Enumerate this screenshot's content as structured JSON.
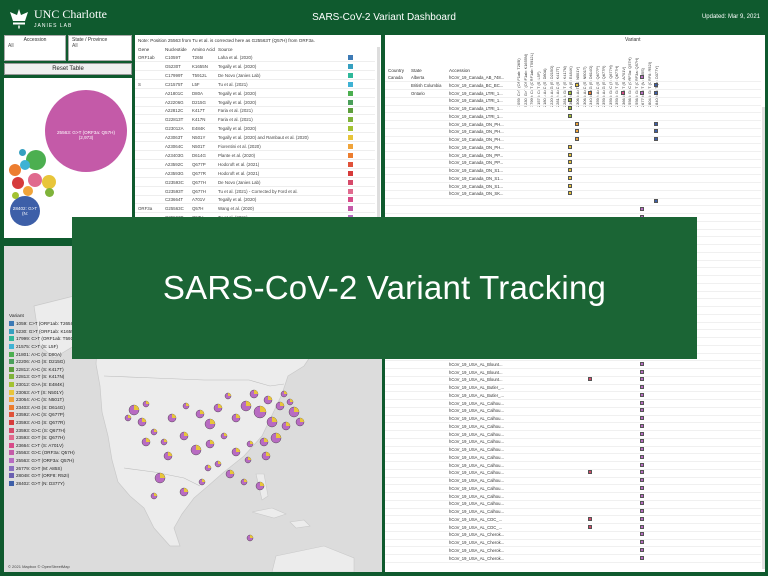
{
  "header": {
    "logo_name": "UNC Charlotte",
    "logo_sub": "JANIES LAB",
    "title": "SARS-CoV-2 Variant Dashboard",
    "updated": "Updated: Mar 9, 2021"
  },
  "filters": {
    "accession_label": "Accession",
    "accession_value": "All",
    "state_label": "State / Province",
    "state_value": "All",
    "reset_label": "Reset Table"
  },
  "bubbles": {
    "main_label": "25563: G>T (ORF3a: Q57H)",
    "main_count": "(2,973)",
    "second_label": "28402: G>T (N:"
  },
  "mutations": {
    "note": "Note: Position 25563 from Tu et al. is corrected here as G25563T (Q57H) from ORF3a.",
    "headers": [
      "Gene",
      "Nucleotide",
      "Amino Acid",
      "Source"
    ],
    "rows": [
      {
        "gene": "ORF1ab",
        "nuc": "C1059T",
        "aa": "T265I",
        "src": "Laha et al. (2020)",
        "color": "#3d7ab5"
      },
      {
        "gene": "",
        "nuc": "G5230T",
        "aa": "K1655N",
        "src": "Tegally et al. (2020)",
        "color": "#35a0c0"
      },
      {
        "gene": "",
        "nuc": "C17999T",
        "aa": "T5912L",
        "src": "De Novo (Janies Lab)",
        "color": "#2fb89a"
      },
      {
        "gene": "S",
        "nuc": "C21575T",
        "aa": "L5F",
        "src": "Tu et al. (2021)",
        "color": "#3fb2d4"
      },
      {
        "gene": "",
        "nuc": "A21801C",
        "aa": "D80A",
        "src": "Tegally et al. (2020)",
        "color": "#4caf50"
      },
      {
        "gene": "",
        "nuc": "A22206G",
        "aa": "D215G",
        "src": "Tegally et al. (2020)",
        "color": "#4a9f5a"
      },
      {
        "gene": "",
        "nuc": "A22812C",
        "aa": "K417T",
        "src": "Faria et al. (2021)",
        "color": "#5d9e3c"
      },
      {
        "gene": "",
        "nuc": "G22813T",
        "aa": "K417N",
        "src": "Faria et al. (2021)",
        "color": "#7fb33a"
      },
      {
        "gene": "",
        "nuc": "G23012A",
        "aa": "E484K",
        "src": "Tegally et al. (2020)",
        "color": "#a3c232"
      },
      {
        "gene": "",
        "nuc": "A23063T",
        "aa": "N501Y",
        "src": "Tegally et al. (2020) and Rambaut et al. (2020)",
        "color": "#e8c53a"
      },
      {
        "gene": "",
        "nuc": "A23064C",
        "aa": "N501T",
        "src": "Fiorentini et al. (2020)",
        "color": "#f0a43a"
      },
      {
        "gene": "",
        "nuc": "A23403G",
        "aa": "D614G",
        "src": "Plante et al. (2020)",
        "color": "#ec7d2f"
      },
      {
        "gene": "",
        "nuc": "A23592C",
        "aa": "Q677P",
        "src": "Hodcroft et al. (2021)",
        "color": "#e0523a"
      },
      {
        "gene": "",
        "nuc": "A23593G",
        "aa": "Q677R",
        "src": "Hodcroft et al. (2021)",
        "color": "#d63b3b"
      },
      {
        "gene": "",
        "nuc": "G23593C",
        "aa": "Q677H",
        "src": "De Novo (Janies Lab)",
        "color": "#d64a6a"
      },
      {
        "gene": "",
        "nuc": "G23593T",
        "aa": "Q677H",
        "src": "Tu et al. (2021) - Corrected by Ford et al.",
        "color": "#e06a8e"
      },
      {
        "gene": "",
        "nuc": "C23664T",
        "aa": "A701V",
        "src": "Tegally et al. (2020)",
        "color": "#d84a88"
      },
      {
        "gene": "ORF3a",
        "nuc": "G25563C",
        "aa": "Q57H",
        "src": "Wang et al. (2020)",
        "color": "#c45aa8"
      },
      {
        "gene": "",
        "nuc": "G25563T",
        "aa": "Q57H",
        "src": "Tu et al. (2021)",
        "color": "#b86bc2"
      },
      {
        "gene": "M",
        "nuc": "G26779T",
        "aa": "A85S",
        "src": "Tu et al. (2021)",
        "color": "#8a6fc0"
      }
    ]
  },
  "grid": {
    "variant_label": "Variant",
    "headers": {
      "country": "Country",
      "state": "State",
      "accession": "Accession"
    },
    "columns": [
      "1059: C>T (ORF1ab: T265I)",
      "5230: G>T (ORF1ab: K1655N)",
      "17999: C>T (ORF1ab: T5912L)",
      "21575: C>T (S: L5F)",
      "21801: A>C (S: D80A)",
      "22206: A>G (S: D215G)",
      "22812: A>C (S: K417T)",
      "22813: G>T (S: K417N)",
      "23012: G>A (S: E484K)",
      "23063: A>T (S: N501Y)",
      "23064: A>C (S: N501T)",
      "23403: A>G (S: D614G)",
      "23592: A>C (S: Q677P)",
      "23593: A>G (S: Q677R)",
      "23593: G>C (S: Q677H)",
      "23593: G>T (S: Q677H)",
      "23664: C>T (S: A701V)",
      "25563: G>C (ORF3a: Q57H)",
      "25563: G>T (ORF3a: Q57H)",
      "26779: G>T (M: A85S)",
      "28048: G>T (ORF8: R52I)",
      "28402: G>T (N: D377Y)"
    ],
    "rows": [
      {
        "country": "Canada",
        "state": "Alberta",
        "acc": "hCoV_19_Canada_AB_748...",
        "marks": [
          [
            19,
            "#b86bc2"
          ]
        ]
      },
      {
        "country": "",
        "state": "British Columbia",
        "acc": "hCoV_19_Canada_BC_BC...",
        "marks": [
          [
            9,
            "#e8c53a"
          ],
          [
            21,
            "#3d5fa8"
          ]
        ]
      },
      {
        "country": "",
        "state": "Ontario",
        "acc": "hCoV_19_Canada_LTRI_1...",
        "marks": [
          [
            8,
            "#a3c232"
          ],
          [
            11,
            "#ec7d2f"
          ],
          [
            16,
            "#d84a88"
          ],
          [
            19,
            "#b86bc2"
          ],
          [
            21,
            "#3d5fa8"
          ]
        ]
      },
      {
        "country": "",
        "state": "",
        "acc": "hCoV_19_Canada_LTRI_1...",
        "marks": [
          [
            8,
            "#a3c232"
          ]
        ]
      },
      {
        "country": "",
        "state": "",
        "acc": "hCoV_19_Canada_LTRI_1...",
        "marks": [
          [
            8,
            "#a3c232"
          ]
        ]
      },
      {
        "country": "",
        "state": "",
        "acc": "hCoV_19_Canada_LTRI_1...",
        "marks": [
          [
            8,
            "#a3c232"
          ]
        ]
      },
      {
        "country": "",
        "state": "",
        "acc": "hCoV_19_Canada_ON_PH...",
        "marks": [
          [
            9,
            "#f0a43a"
          ],
          [
            21,
            "#3d5fa8"
          ]
        ]
      },
      {
        "country": "",
        "state": "",
        "acc": "hCoV_19_Canada_ON_PH...",
        "marks": [
          [
            9,
            "#f0a43a"
          ],
          [
            21,
            "#3d5fa8"
          ]
        ]
      },
      {
        "country": "",
        "state": "",
        "acc": "hCoV_19_Canada_ON_PH...",
        "marks": [
          [
            9,
            "#f0a43a"
          ],
          [
            21,
            "#3d5fa8"
          ]
        ]
      },
      {
        "country": "",
        "state": "",
        "acc": "hCoV_19_Canada_ON_PH...",
        "marks": [
          [
            8,
            "#e8c53a"
          ]
        ]
      },
      {
        "country": "",
        "state": "",
        "acc": "hCoV_19_Canada_ON_PP...",
        "marks": [
          [
            8,
            "#e8c53a"
          ]
        ]
      },
      {
        "country": "",
        "state": "",
        "acc": "hCoV_19_Canada_ON_PP...",
        "marks": [
          [
            8,
            "#e8c53a"
          ]
        ]
      },
      {
        "country": "",
        "state": "",
        "acc": "hCoV_19_Canada_ON_S1...",
        "marks": [
          [
            8,
            "#e8c53a"
          ]
        ]
      },
      {
        "country": "",
        "state": "",
        "acc": "hCoV_19_Canada_ON_S1...",
        "marks": [
          [
            8,
            "#e8c53a"
          ]
        ]
      },
      {
        "country": "",
        "state": "",
        "acc": "hCoV_19_Canada_ON_S1...",
        "marks": [
          [
            8,
            "#e8c53a"
          ]
        ]
      },
      {
        "country": "",
        "state": "",
        "acc": "hCoV_19_Canada_ON_SK...",
        "marks": [
          [
            8,
            "#e8c53a"
          ]
        ]
      },
      {
        "country": "",
        "state": "",
        "acc": "",
        "marks": [
          [
            21,
            "#3d5fa8"
          ]
        ]
      },
      {
        "country": "",
        "state": "",
        "acc": "",
        "marks": [
          [
            19,
            "#b86bc2"
          ]
        ]
      },
      {
        "country": "",
        "state": "",
        "acc": "",
        "marks": [
          [
            19,
            "#b86bc2"
          ]
        ]
      },
      {
        "country": "",
        "state": "",
        "acc": "",
        "marks": [
          [
            19,
            "#b86bc2"
          ]
        ]
      },
      {
        "country": "",
        "state": "",
        "acc": "",
        "marks": [
          [
            19,
            "#b86bc2"
          ]
        ]
      },
      {
        "country": "",
        "state": "",
        "acc": "",
        "marks": [
          [
            19,
            "#b86bc2"
          ]
        ]
      },
      {
        "country": "",
        "state": "",
        "acc": "",
        "marks": [
          [
            19,
            "#b86bc2"
          ]
        ]
      },
      {
        "country": "",
        "state": "",
        "acc": "",
        "marks": [
          [
            19,
            "#b86bc2"
          ]
        ]
      },
      {
        "country": "",
        "state": "",
        "acc": "",
        "marks": [
          [
            19,
            "#b86bc2"
          ]
        ]
      },
      {
        "country": "",
        "state": "",
        "acc": "",
        "marks": [
          [
            19,
            "#b86bc2"
          ]
        ]
      },
      {
        "country": "",
        "state": "",
        "acc": "",
        "marks": [
          [
            19,
            "#b86bc2"
          ]
        ]
      },
      {
        "country": "",
        "state": "",
        "acc": "",
        "marks": [
          [
            19,
            "#b86bc2"
          ]
        ]
      },
      {
        "country": "",
        "state": "",
        "acc": "",
        "marks": [
          [
            19,
            "#b86bc2"
          ]
        ]
      },
      {
        "country": "",
        "state": "",
        "acc": "",
        "marks": [
          [
            19,
            "#b86bc2"
          ]
        ]
      },
      {
        "country": "",
        "state": "",
        "acc": "",
        "marks": [
          [
            19,
            "#b86bc2"
          ]
        ]
      },
      {
        "country": "",
        "state": "",
        "acc": "",
        "marks": [
          [
            19,
            "#b86bc2"
          ]
        ]
      },
      {
        "country": "",
        "state": "",
        "acc": "",
        "marks": [
          [
            19,
            "#b86bc2"
          ]
        ]
      },
      {
        "country": "",
        "state": "",
        "acc": "",
        "marks": [
          [
            19,
            "#b86bc2"
          ]
        ]
      },
      {
        "country": "",
        "state": "",
        "acc": "",
        "marks": [
          [
            19,
            "#b86bc2"
          ]
        ]
      },
      {
        "country": "",
        "state": "",
        "acc": "",
        "marks": [
          [
            19,
            "#b86bc2"
          ]
        ]
      },
      {
        "country": "",
        "state": "",
        "acc": "",
        "marks": [
          [
            19,
            "#b86bc2"
          ]
        ]
      },
      {
        "country": "",
        "state": "",
        "acc": "hCoV_19_USA_AL_Blount...",
        "marks": [
          [
            19,
            "#b86bc2"
          ]
        ]
      },
      {
        "country": "",
        "state": "",
        "acc": "hCoV_19_USA_AL_Blount...",
        "marks": [
          [
            19,
            "#b86bc2"
          ]
        ]
      },
      {
        "country": "",
        "state": "",
        "acc": "hCoV_19_USA_AL_Blount...",
        "marks": [
          [
            11,
            "#d64a6a"
          ],
          [
            19,
            "#b86bc2"
          ]
        ]
      },
      {
        "country": "",
        "state": "",
        "acc": "hCoV_19_USA_AL_Butler_...",
        "marks": [
          [
            19,
            "#b86bc2"
          ]
        ]
      },
      {
        "country": "",
        "state": "",
        "acc": "hCoV_19_USA_AL_Butler_...",
        "marks": [
          [
            19,
            "#b86bc2"
          ]
        ]
      },
      {
        "country": "",
        "state": "",
        "acc": "hCoV_19_USA_AL_Calhou...",
        "marks": [
          [
            19,
            "#b86bc2"
          ]
        ]
      },
      {
        "country": "",
        "state": "",
        "acc": "hCoV_19_USA_AL_Calhou...",
        "marks": [
          [
            19,
            "#b86bc2"
          ]
        ]
      },
      {
        "country": "",
        "state": "",
        "acc": "hCoV_19_USA_AL_Calhou...",
        "marks": [
          [
            19,
            "#b86bc2"
          ]
        ]
      },
      {
        "country": "",
        "state": "",
        "acc": "hCoV_19_USA_AL_Calhou...",
        "marks": [
          [
            19,
            "#b86bc2"
          ]
        ]
      },
      {
        "country": "",
        "state": "",
        "acc": "hCoV_19_USA_AL_Calhou...",
        "marks": [
          [
            19,
            "#b86bc2"
          ]
        ]
      },
      {
        "country": "",
        "state": "",
        "acc": "hCoV_19_USA_AL_Calhou...",
        "marks": [
          [
            19,
            "#b86bc2"
          ]
        ]
      },
      {
        "country": "",
        "state": "",
        "acc": "hCoV_19_USA_AL_Calhou...",
        "marks": [
          [
            19,
            "#b86bc2"
          ]
        ]
      },
      {
        "country": "",
        "state": "",
        "acc": "hCoV_19_USA_AL_Calhou...",
        "marks": [
          [
            19,
            "#b86bc2"
          ]
        ]
      },
      {
        "country": "",
        "state": "",
        "acc": "hCoV_19_USA_AL_Calhou...",
        "marks": [
          [
            19,
            "#b86bc2"
          ]
        ]
      },
      {
        "country": "",
        "state": "",
        "acc": "hCoV_19_USA_AL_Calhou...",
        "marks": [
          [
            11,
            "#d64a6a"
          ],
          [
            19,
            "#b86bc2"
          ]
        ]
      },
      {
        "country": "",
        "state": "",
        "acc": "hCoV_19_USA_AL_Calhou...",
        "marks": [
          [
            19,
            "#b86bc2"
          ]
        ]
      },
      {
        "country": "",
        "state": "",
        "acc": "hCoV_19_USA_AL_Calhou...",
        "marks": [
          [
            19,
            "#b86bc2"
          ]
        ]
      },
      {
        "country": "",
        "state": "",
        "acc": "hCoV_19_USA_AL_Calhou...",
        "marks": [
          [
            19,
            "#b86bc2"
          ]
        ]
      },
      {
        "country": "",
        "state": "",
        "acc": "hCoV_19_USA_AL_Calhou...",
        "marks": [
          [
            19,
            "#b86bc2"
          ]
        ]
      },
      {
        "country": "",
        "state": "",
        "acc": "hCoV_19_USA_AL_Calhou...",
        "marks": [
          [
            19,
            "#b86bc2"
          ]
        ]
      },
      {
        "country": "",
        "state": "",
        "acc": "hCoV_19_USA_AL_CDC_...",
        "marks": [
          [
            11,
            "#d64a6a"
          ],
          [
            19,
            "#b86bc2"
          ]
        ]
      },
      {
        "country": "",
        "state": "",
        "acc": "hCoV_19_USA_AL_CDC_...",
        "marks": [
          [
            11,
            "#d64a6a"
          ],
          [
            19,
            "#b86bc2"
          ]
        ]
      },
      {
        "country": "",
        "state": "",
        "acc": "hCoV_19_USA_AL_Cherok...",
        "marks": [
          [
            19,
            "#b86bc2"
          ]
        ]
      },
      {
        "country": "",
        "state": "",
        "acc": "hCoV_19_USA_AL_Cherok...",
        "marks": [
          [
            19,
            "#b86bc2"
          ]
        ]
      },
      {
        "country": "",
        "state": "",
        "acc": "hCoV_19_USA_AL_Cherok...",
        "marks": [
          [
            19,
            "#b86bc2"
          ]
        ]
      },
      {
        "country": "",
        "state": "",
        "acc": "hCoV_19_USA_AL_Cherok...",
        "marks": [
          [
            19,
            "#b86bc2"
          ]
        ]
      }
    ]
  },
  "legend": {
    "title": "Variant",
    "items": [
      {
        "label": "1059: C>T (ORF1ab: T265I)",
        "color": "#3d7ab5"
      },
      {
        "label": "5230: G>T (ORF1ab: K1655N)",
        "color": "#35a0c0"
      },
      {
        "label": "17999: C>T (ORF1ab: T5912L)",
        "color": "#2fb89a"
      },
      {
        "label": "21575: C>T (S: L5F)",
        "color": "#3fb2d4"
      },
      {
        "label": "21801: A>C (S: D80A)",
        "color": "#4caf50"
      },
      {
        "label": "22206: A>G (S: D215G)",
        "color": "#4a9f5a"
      },
      {
        "label": "22812: A>C (S: K417T)",
        "color": "#5d9e3c"
      },
      {
        "label": "22813: G>T (S: K417N)",
        "color": "#7fb33a"
      },
      {
        "label": "23012: G>A (S: E484K)",
        "color": "#a3c232"
      },
      {
        "label": "23063: A>T (S: N501Y)",
        "color": "#e8c53a"
      },
      {
        "label": "23064: A>C (S: N501T)",
        "color": "#f0a43a"
      },
      {
        "label": "23403: A>G (S: D614G)",
        "color": "#ec7d2f"
      },
      {
        "label": "23592: A>C (S: Q677P)",
        "color": "#e0523a"
      },
      {
        "label": "23593: A>G (S: Q677R)",
        "color": "#d63b3b"
      },
      {
        "label": "23593: G>C (S: Q677H)",
        "color": "#d64a6a"
      },
      {
        "label": "23593: G>T (S: Q677H)",
        "color": "#e06a8e"
      },
      {
        "label": "23664: C>T (S: A701V)",
        "color": "#d84a88"
      },
      {
        "label": "25563: G>C (ORF3a: Q57H)",
        "color": "#c45aa8"
      },
      {
        "label": "25563: G>T (ORF3a: Q57H)",
        "color": "#b86bc2"
      },
      {
        "label": "26779: G>T (M: A85S)",
        "color": "#8a6fc0"
      },
      {
        "label": "28048: G>T (ORF8: R52I)",
        "color": "#6a5fb0"
      },
      {
        "label": "28402: G>T (N: D377Y)",
        "color": "#3d5fa8"
      }
    ]
  },
  "map": {
    "credit": "© 2021 Mapbox © OpenStreetMap"
  },
  "overlay": {
    "title": "SARS-CoV-2 Variant Tracking"
  }
}
